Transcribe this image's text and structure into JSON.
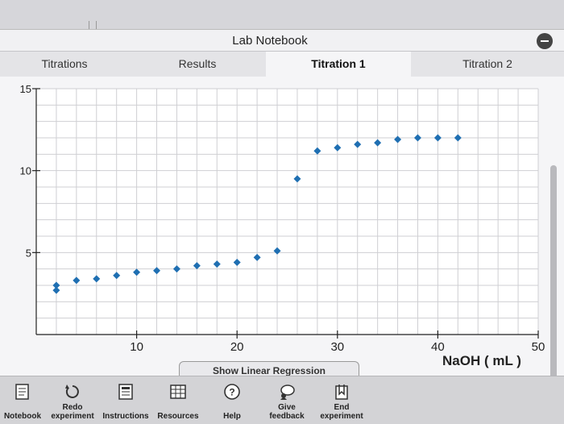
{
  "window": {
    "title": "Lab Notebook"
  },
  "tabs": [
    {
      "label": "Titrations",
      "active": false
    },
    {
      "label": "Results",
      "active": false
    },
    {
      "label": "Titration 1",
      "active": true
    },
    {
      "label": "Titration 2",
      "active": false
    }
  ],
  "chart_data": {
    "type": "scatter",
    "xlabel": "NaOH ( mL )",
    "ylabel": "",
    "xlim": [
      0,
      50
    ],
    "ylim": [
      0,
      15
    ],
    "x_ticks": [
      "10",
      "20",
      "30",
      "40",
      "50"
    ],
    "y_ticks": [
      "5",
      "10",
      "15"
    ],
    "grid": true,
    "point_color": "#1f6fb2",
    "series": [
      {
        "x": [
          2,
          2,
          4,
          6,
          8,
          10,
          12,
          14,
          16,
          18,
          20,
          22,
          24,
          26,
          28,
          30,
          32,
          34,
          36,
          38,
          40,
          42
        ],
        "y": [
          3.0,
          2.7,
          3.3,
          3.4,
          3.6,
          3.8,
          3.9,
          4.0,
          4.2,
          4.3,
          4.4,
          4.7,
          5.1,
          9.5,
          11.2,
          11.4,
          11.6,
          11.7,
          11.9,
          12.0,
          12.0,
          12.0
        ]
      }
    ]
  },
  "partial_button": {
    "label": "Show Linear Regression"
  },
  "toolbar": {
    "items": [
      {
        "label": "Notebook",
        "icon": "notebook-icon"
      },
      {
        "label": "Redo experiment",
        "icon": "redo-icon"
      },
      {
        "label": "Instructions",
        "icon": "instructions-icon"
      },
      {
        "label": "Resources",
        "icon": "resources-icon"
      },
      {
        "label": "Help",
        "icon": "help-icon"
      },
      {
        "label": "Give feedback",
        "icon": "feedback-icon"
      },
      {
        "label": "End experiment",
        "icon": "end-experiment-icon"
      }
    ]
  }
}
